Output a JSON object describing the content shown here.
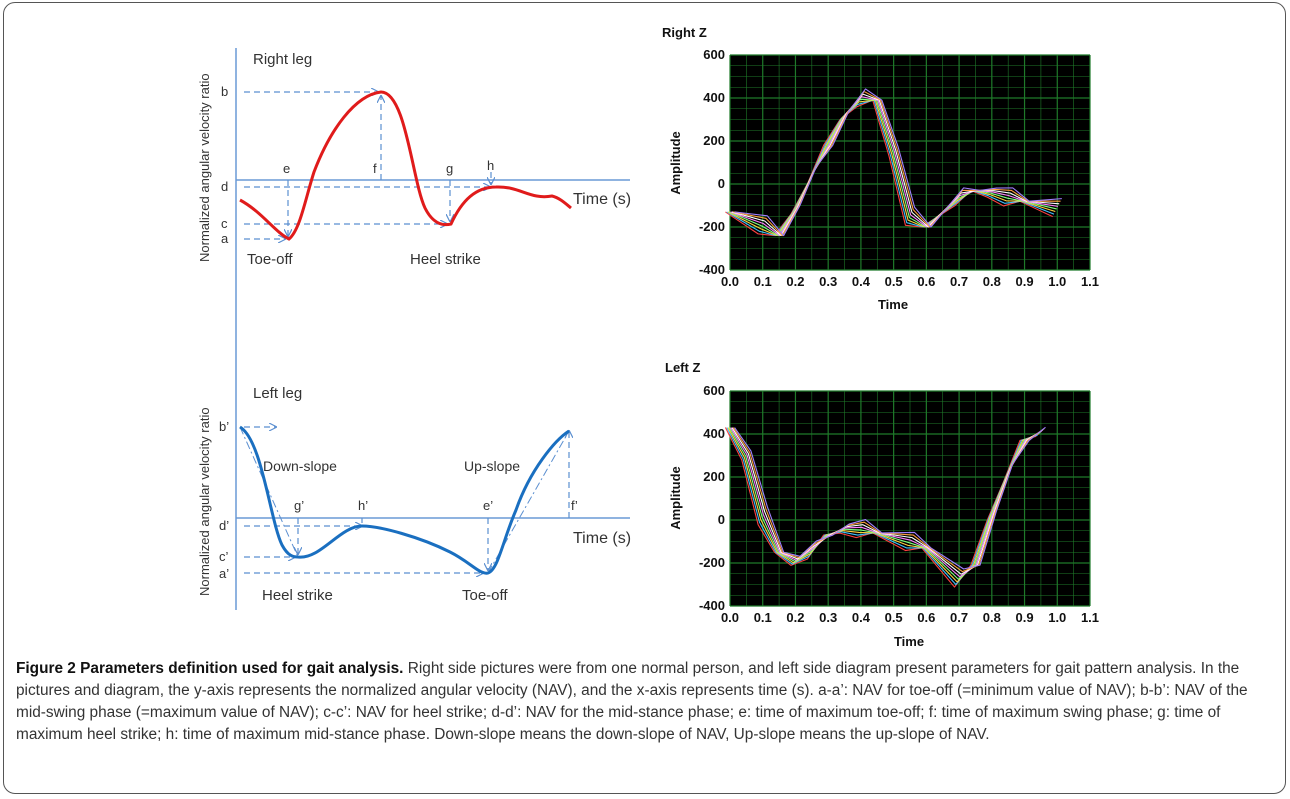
{
  "right_diagram": {
    "ylabel": "Normalized angular velocity ratio",
    "title": "Right leg",
    "time_label": "Time (s)",
    "levels": {
      "b": "b",
      "d": "d",
      "c": "c",
      "a": "a"
    },
    "markers": {
      "e": "e",
      "f": "f",
      "g": "g",
      "h": "h"
    },
    "events": {
      "toe_off": "Toe-off",
      "heel_strike": "Heel strike"
    },
    "curve_color": "#e01b1b"
  },
  "left_diagram": {
    "ylabel": "Normalized angular velocity ratio",
    "title": "Left leg",
    "time_label": "Time (s)",
    "levels": {
      "b": "b’",
      "d": "d’",
      "c": "c’",
      "a": "a’"
    },
    "markers": {
      "e": "e’",
      "f": "f’",
      "g": "g’",
      "h": "h’"
    },
    "slopes": {
      "down": "Down-slope",
      "up": "Up-slope"
    },
    "events": {
      "heel_strike": "Heel strike",
      "toe_off": "Toe-off"
    },
    "curve_color": "#1a6fc0"
  },
  "chart_data": [
    {
      "type": "line",
      "title": "Right Z",
      "xlabel": "Time",
      "ylabel": "Amplitude",
      "xlim": [
        0.0,
        1.1
      ],
      "ylim": [
        -400,
        600
      ],
      "x_ticks": [
        "0.0",
        "0.1",
        "0.2",
        "0.3",
        "0.4",
        "0.5",
        "0.6",
        "0.7",
        "0.8",
        "0.9",
        "1.0",
        "1.1"
      ],
      "y_ticks": [
        "600",
        "400",
        "200",
        "0",
        "-200",
        "-400"
      ],
      "grid": true,
      "background": "#000000",
      "grid_color": "#1f7a2a",
      "x": [
        0.0,
        0.05,
        0.1,
        0.15,
        0.2,
        0.25,
        0.3,
        0.35,
        0.4,
        0.45,
        0.5,
        0.55,
        0.6,
        0.65,
        0.7,
        0.75,
        0.8,
        0.85,
        0.9,
        0.95,
        1.0
      ],
      "series": [
        {
          "values": [
            -130,
            -160,
            -190,
            -240,
            -120,
            40,
            180,
            320,
            400,
            390,
            150,
            -150,
            -200,
            -130,
            -60,
            -30,
            -40,
            -60,
            -80,
            -95,
            -110
          ]
        }
      ]
    },
    {
      "type": "line",
      "title": "Left Z",
      "xlabel": "Time",
      "ylabel": "Amplitude",
      "xlim": [
        0.0,
        1.1
      ],
      "ylim": [
        -400,
        600
      ],
      "x_ticks": [
        "0.0",
        "0.1",
        "0.2",
        "0.3",
        "0.4",
        "0.5",
        "0.6",
        "0.7",
        "0.8",
        "0.9",
        "1.0",
        "1.1"
      ],
      "y_ticks": [
        "600",
        "400",
        "200",
        "0",
        "-200",
        "-400"
      ],
      "grid": true,
      "background": "#000000",
      "grid_color": "#1f7a2a",
      "x": [
        0.0,
        0.05,
        0.1,
        0.15,
        0.2,
        0.25,
        0.3,
        0.35,
        0.4,
        0.45,
        0.5,
        0.55,
        0.6,
        0.65,
        0.7,
        0.75,
        0.8,
        0.85,
        0.9,
        0.95
      ],
      "series": [
        {
          "values": [
            430,
            300,
            20,
            -150,
            -190,
            -140,
            -70,
            -40,
            -40,
            -60,
            -80,
            -100,
            -130,
            -200,
            -270,
            -210,
            20,
            220,
            370,
            410
          ]
        }
      ]
    }
  ],
  "caption": {
    "label": "Figure 2 Parameters definition used for gait analysis.",
    "text": " Right side pictures were from one normal person, and left side diagram present parameters for gait pattern analysis. In the pictures and diagram, the y-axis represents the normalized angular velocity (NAV), and the x-axis represents time (s). a-a’: NAV for toe-off (=minimum value of NAV); b-b’: NAV of the mid-swing phase (=maximum value of NAV); c-c’: NAV for heel strike; d-d’: NAV for the mid-stance phase; e: time of maximum toe-off; f: time of maximum swing phase; g: time of maximum heel strike; h: time of maximum mid-stance phase. Down-slope means the down-slope of NAV, Up-slope means the up-slope of NAV."
  }
}
